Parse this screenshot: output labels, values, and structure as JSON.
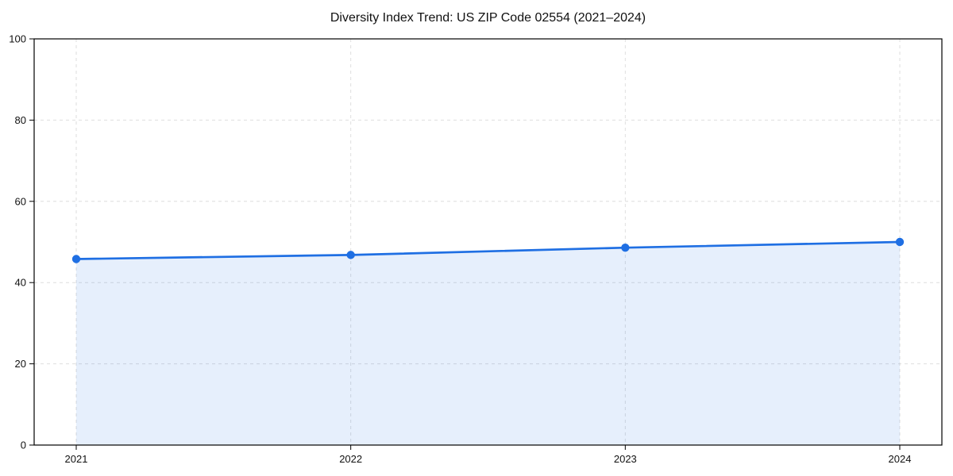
{
  "chart_data": {
    "type": "area",
    "title": "Diversity Index Trend: US ZIP Code 02554 (2021–2024)",
    "categories": [
      "2021",
      "2022",
      "2023",
      "2024"
    ],
    "series": [
      {
        "name": "Diversity Index",
        "values": [
          45.8,
          46.8,
          48.6,
          50.0
        ]
      }
    ],
    "xlabel": "",
    "ylabel": "",
    "ylim": [
      0,
      100
    ],
    "yticks": [
      0,
      20,
      40,
      60,
      80,
      100
    ],
    "grid": "dashed-both-axes",
    "legend_position": "none",
    "marker": "circle",
    "line_color": "#1f6fe3",
    "fill_color": "#1f6fe3",
    "fill_opacity": 0.11,
    "grid_color": "#dedede",
    "text_color": "#111111",
    "background_color": "#ffffff"
  }
}
